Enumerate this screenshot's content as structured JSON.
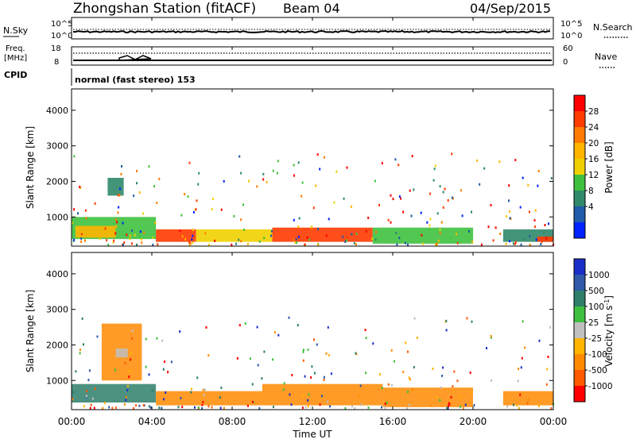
{
  "header": {
    "station": "Zhongshan Station (fitACF)",
    "beam": "Beam 04",
    "date": "04/Sep/2015"
  },
  "top_panel_1": {
    "left_label": "N.Sky",
    "left_ticks": [
      "10^5",
      "10^0"
    ],
    "right_ticks": [
      "10^5",
      "10^0"
    ],
    "right_label": "N.Search"
  },
  "top_panel_2": {
    "left_label_1": "Freq.",
    "left_label_2": "[MHz]",
    "left_ticks": [
      "18",
      "8"
    ],
    "right_ticks": [
      "60",
      "0"
    ],
    "right_label": "Nave"
  },
  "cpid": {
    "label": "CPID",
    "text": "normal (fast stereo) 153"
  },
  "x_axis": {
    "label": "Time UT",
    "ticks": [
      "00:00",
      "04:00",
      "08:00",
      "12:00",
      "16:00",
      "20:00",
      "00:00"
    ],
    "range_hours": [
      0,
      24
    ]
  },
  "power_panel": {
    "ylabel": "Slant Range [km]",
    "yticks": [
      "1000",
      "2000",
      "3000",
      "4000"
    ],
    "colorbar_label": "Power [dB]",
    "colorbar_ticks": [
      "28",
      "24",
      "20",
      "16",
      "12",
      "8",
      "4"
    ],
    "colors": [
      "#ff0000",
      "#ff3b00",
      "#ff7a00",
      "#ffb400",
      "#f0d000",
      "#3fc13f",
      "#2e8a6a",
      "#1f5ba8",
      "#0022ff"
    ]
  },
  "velocity_panel": {
    "ylabel": "Slant Range [km]",
    "yticks": [
      "1000",
      "2000",
      "3000",
      "4000"
    ],
    "colorbar_label": "Velocity [m s",
    "colorbar_label_sup": "-1",
    "colorbar_label_end": "]",
    "colorbar_ticks": [
      "1000",
      "500",
      "100",
      "25",
      "-25",
      "-100",
      "-500",
      "-1000"
    ],
    "colors": [
      "#1a2fc8",
      "#2e5aa8",
      "#2e7e6a",
      "#3fbf3f",
      "#c0c0c0",
      "#ffb400",
      "#ff8a00",
      "#ff5a00",
      "#ff0000"
    ]
  },
  "chart_data": {
    "type": "heatmap",
    "title": "Zhongshan Station (fitACF) Beam 04",
    "x_unit": "hours UT",
    "y_unit": "km",
    "ylim": [
      180,
      4600
    ],
    "xlim": [
      0,
      24
    ],
    "power_regions": [
      {
        "t0": 0.0,
        "t1": 4.2,
        "r0": 380,
        "r1": 1000,
        "dB": 14
      },
      {
        "t0": 0.2,
        "t1": 2.2,
        "r0": 420,
        "r1": 750,
        "dB": 20
      },
      {
        "t0": 1.8,
        "t1": 2.6,
        "r0": 1600,
        "r1": 2100,
        "dB": 10
      },
      {
        "t0": 4.2,
        "t1": 6.2,
        "r0": 300,
        "r1": 650,
        "dB": 26
      },
      {
        "t0": 6.2,
        "t1": 10.0,
        "r0": 300,
        "r1": 650,
        "dB": 18
      },
      {
        "t0": 10.0,
        "t1": 15.0,
        "r0": 300,
        "r1": 700,
        "dB": 26
      },
      {
        "t0": 15.0,
        "t1": 20.0,
        "r0": 250,
        "r1": 700,
        "dB": 14
      },
      {
        "t0": 21.5,
        "t1": 24.0,
        "r0": 300,
        "r1": 650,
        "dB": 10
      },
      {
        "t0": 23.2,
        "t1": 24.0,
        "r0": 300,
        "r1": 450,
        "dB": 26
      }
    ],
    "velocity_regions": [
      {
        "t0": 0.0,
        "t1": 4.2,
        "r0": 380,
        "r1": 900,
        "v": 100
      },
      {
        "t0": 1.5,
        "t1": 3.5,
        "r0": 1000,
        "r1": 2600,
        "v": -100
      },
      {
        "t0": 2.2,
        "t1": 2.8,
        "r0": 1650,
        "r1": 1900,
        "v": 0
      },
      {
        "t0": 4.2,
        "t1": 9.5,
        "r0": 300,
        "r1": 700,
        "v": -100
      },
      {
        "t0": 9.5,
        "t1": 15.5,
        "r0": 300,
        "r1": 900,
        "v": -100
      },
      {
        "t0": 15.5,
        "t1": 20.0,
        "r0": 250,
        "r1": 800,
        "v": -100
      },
      {
        "t0": 21.5,
        "t1": 24.0,
        "r0": 300,
        "r1": 700,
        "v": -100
      }
    ]
  }
}
